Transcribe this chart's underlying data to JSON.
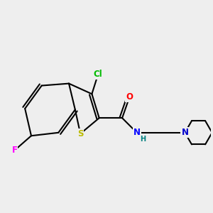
{
  "background_color": "#eeeeee",
  "bond_color": "#000000",
  "atom_colors": {
    "Cl": "#00bb00",
    "F": "#ff00ff",
    "S": "#bbbb00",
    "O": "#ff0000",
    "N_amide": "#0000ff",
    "N_piper": "#0000cc",
    "H": "#008080"
  },
  "figsize": [
    3.0,
    3.0
  ],
  "dpi": 100
}
